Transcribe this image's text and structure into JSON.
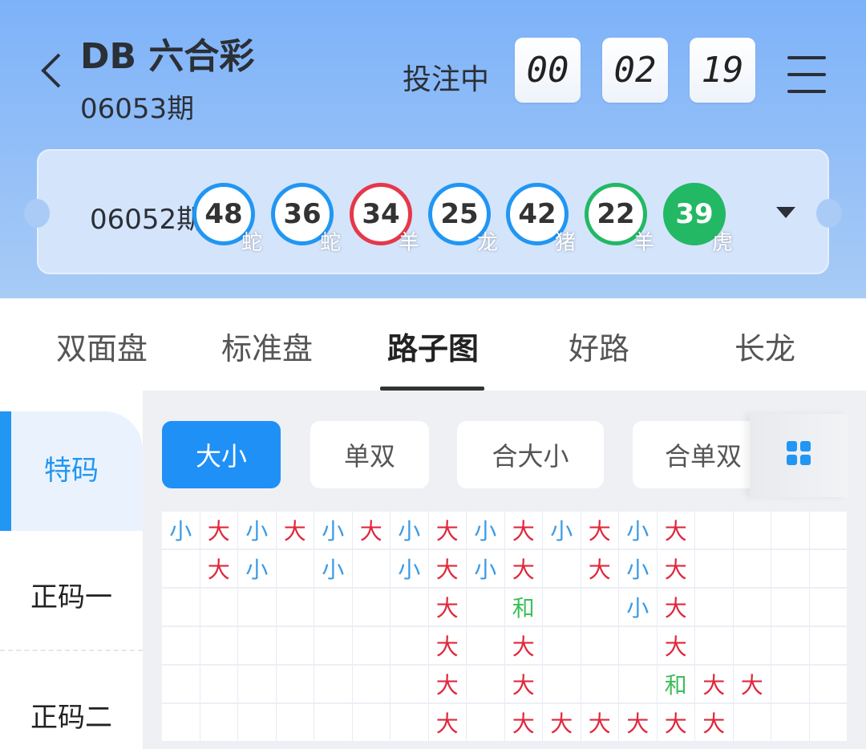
{
  "header": {
    "title": "DB 六合彩",
    "issue": "06053期",
    "status": "投注中",
    "timer": [
      "00",
      "02",
      "19"
    ]
  },
  "last_draw": {
    "issue": "06052期",
    "balls": [
      {
        "number": "48",
        "zodiac": "蛇",
        "color": "#2196f3",
        "filled": false
      },
      {
        "number": "36",
        "zodiac": "蛇",
        "color": "#2196f3",
        "filled": false
      },
      {
        "number": "34",
        "zodiac": "羊",
        "color": "#e5384a",
        "filled": false
      },
      {
        "number": "25",
        "zodiac": "龙",
        "color": "#2196f3",
        "filled": false
      },
      {
        "number": "42",
        "zodiac": "猪",
        "color": "#2196f3",
        "filled": false
      },
      {
        "number": "22",
        "zodiac": "羊",
        "color": "#22b864",
        "filled": false
      },
      {
        "number": "39",
        "zodiac": "虎",
        "color": "#22b864",
        "filled": true
      }
    ]
  },
  "tabs": [
    {
      "label": "双面盘"
    },
    {
      "label": "标准盘"
    },
    {
      "label": "路子图",
      "active": true
    },
    {
      "label": "好路"
    },
    {
      "label": "长龙"
    }
  ],
  "sidebar": {
    "items": [
      {
        "label": "特码",
        "active": true
      },
      {
        "label": "正码一"
      },
      {
        "label": "正码二"
      }
    ]
  },
  "filters": [
    {
      "label": "大小",
      "active": true
    },
    {
      "label": "单双"
    },
    {
      "label": "合大小"
    },
    {
      "label": "合单双"
    }
  ],
  "colors": {
    "大": "#e0283c",
    "小": "#3a9be6",
    "和": "#3cbf5a"
  },
  "road": [
    [
      "小",
      "大",
      "小",
      "大",
      "小",
      "大",
      "小",
      "大",
      "小",
      "大",
      "小",
      "大",
      "小",
      "大",
      "",
      "",
      "",
      ""
    ],
    [
      "",
      "大",
      "小",
      "",
      "小",
      "",
      "小",
      "大",
      "小",
      "大",
      "",
      "大",
      "小",
      "大",
      "",
      "",
      "",
      ""
    ],
    [
      "",
      "",
      "",
      "",
      "",
      "",
      "",
      "大",
      "",
      "和",
      "",
      "",
      "小",
      "大",
      "",
      "",
      "",
      ""
    ],
    [
      "",
      "",
      "",
      "",
      "",
      "",
      "",
      "大",
      "",
      "大",
      "",
      "",
      "",
      "大",
      "",
      "",
      "",
      ""
    ],
    [
      "",
      "",
      "",
      "",
      "",
      "",
      "",
      "大",
      "",
      "大",
      "",
      "",
      "",
      "和",
      "大",
      "大",
      "",
      ""
    ],
    [
      "",
      "",
      "",
      "",
      "",
      "",
      "",
      "大",
      "",
      "大",
      "大",
      "大",
      "大",
      "大",
      "大",
      "",
      "",
      ""
    ]
  ]
}
